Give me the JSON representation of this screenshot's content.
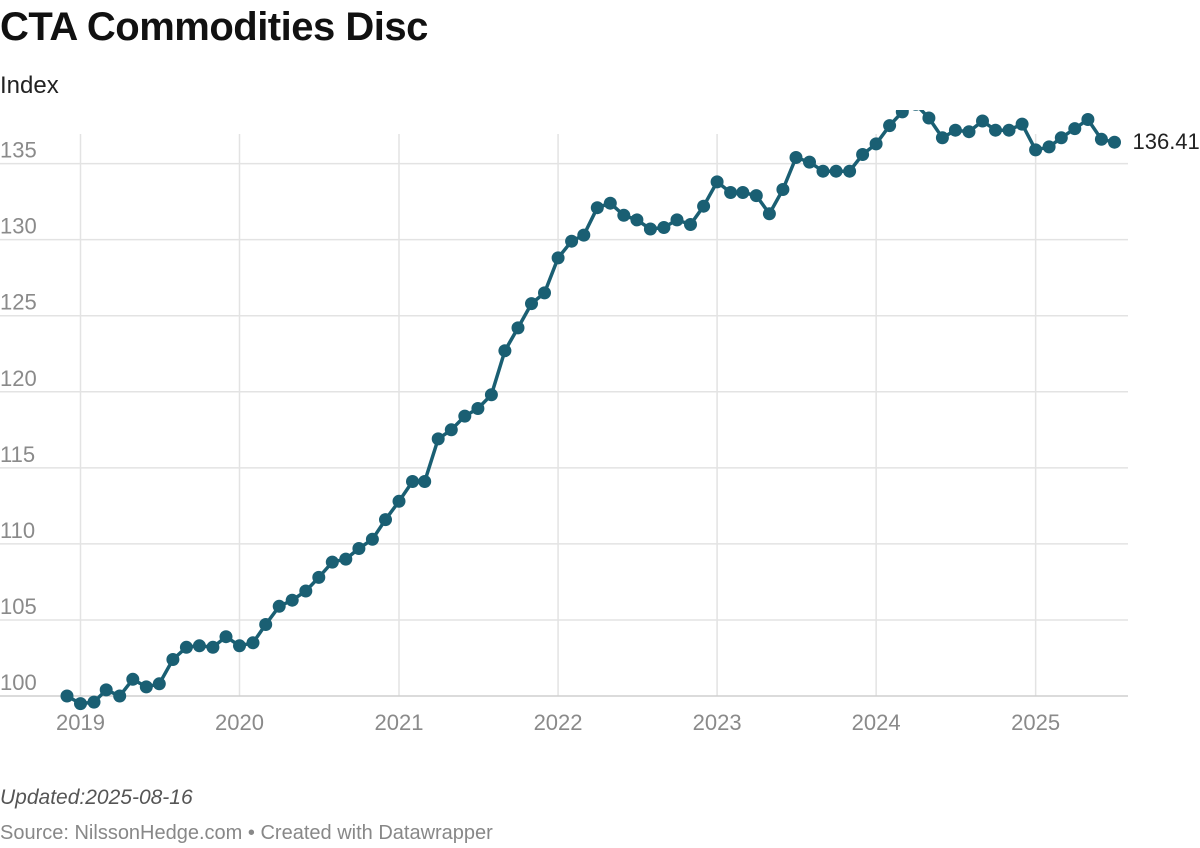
{
  "header": {
    "title": "CTA Commodities Disc",
    "subtitle": "Index"
  },
  "footer": {
    "updated": "Updated:2025-08-16",
    "source": "Source: NilssonHedge.com",
    "separator": "•",
    "credit": "Created with Datawrapper"
  },
  "chart_data": {
    "type": "line",
    "title": "CTA Commodities Disc",
    "subtitle": "Index",
    "xlabel": "",
    "ylabel": "",
    "xlim": [
      "2018-11-15",
      "2025-08-01"
    ],
    "ylim": [
      100,
      138
    ],
    "yticks": [
      100,
      105,
      110,
      115,
      120,
      125,
      130,
      135
    ],
    "xticks": [
      "2019",
      "2020",
      "2021",
      "2022",
      "2023",
      "2024",
      "2025"
    ],
    "grid": true,
    "legend": "none",
    "end_label": "136.41",
    "color": "#1a5f73",
    "series": [
      {
        "x": [
          "2018-12",
          "2019-01",
          "2019-02",
          "2019-03",
          "2019-04",
          "2019-05",
          "2019-06",
          "2019-07",
          "2019-08",
          "2019-09",
          "2019-10",
          "2019-11",
          "2019-12",
          "2020-01",
          "2020-02",
          "2020-03",
          "2020-04",
          "2020-05",
          "2020-06",
          "2020-07",
          "2020-08",
          "2020-09",
          "2020-10",
          "2020-11",
          "2020-12",
          "2021-01",
          "2021-02",
          "2021-03",
          "2021-04",
          "2021-05",
          "2021-06",
          "2021-07",
          "2021-08",
          "2021-09",
          "2021-10",
          "2021-11",
          "2021-12",
          "2022-01",
          "2022-02",
          "2022-03",
          "2022-04",
          "2022-05",
          "2022-06",
          "2022-07",
          "2022-08",
          "2022-09",
          "2022-10",
          "2022-11",
          "2022-12",
          "2023-01",
          "2023-02",
          "2023-03",
          "2023-04",
          "2023-05",
          "2023-06",
          "2023-07",
          "2023-08",
          "2023-09",
          "2023-10",
          "2023-11",
          "2023-12",
          "2024-01",
          "2024-02",
          "2024-03",
          "2024-04",
          "2024-05",
          "2024-06",
          "2024-07",
          "2024-08",
          "2024-09",
          "2024-10",
          "2024-11",
          "2024-12",
          "2025-01",
          "2025-02",
          "2025-03",
          "2025-04",
          "2025-05",
          "2025-06",
          "2025-07"
        ],
        "values": [
          100.0,
          99.5,
          99.6,
          100.4,
          100.0,
          101.1,
          100.6,
          100.8,
          102.4,
          103.2,
          103.3,
          103.2,
          103.9,
          103.3,
          103.5,
          104.7,
          105.9,
          106.3,
          106.9,
          107.8,
          108.8,
          109.0,
          109.7,
          110.3,
          111.6,
          112.8,
          114.1,
          114.1,
          116.9,
          117.5,
          118.4,
          118.9,
          119.8,
          122.7,
          124.2,
          125.8,
          126.5,
          128.8,
          129.9,
          130.3,
          132.1,
          132.4,
          131.6,
          131.3,
          130.7,
          130.8,
          131.3,
          131.0,
          132.2,
          133.8,
          133.1,
          133.1,
          132.9,
          131.7,
          133.3,
          135.4,
          135.1,
          134.5,
          134.5,
          134.5,
          135.6,
          136.3,
          137.5,
          138.4,
          138.9,
          138.0,
          136.7,
          137.2,
          137.1,
          137.8,
          137.2,
          137.2,
          137.6,
          135.9,
          136.1,
          136.7,
          137.3,
          137.9,
          136.6,
          136.41
        ]
      }
    ]
  }
}
